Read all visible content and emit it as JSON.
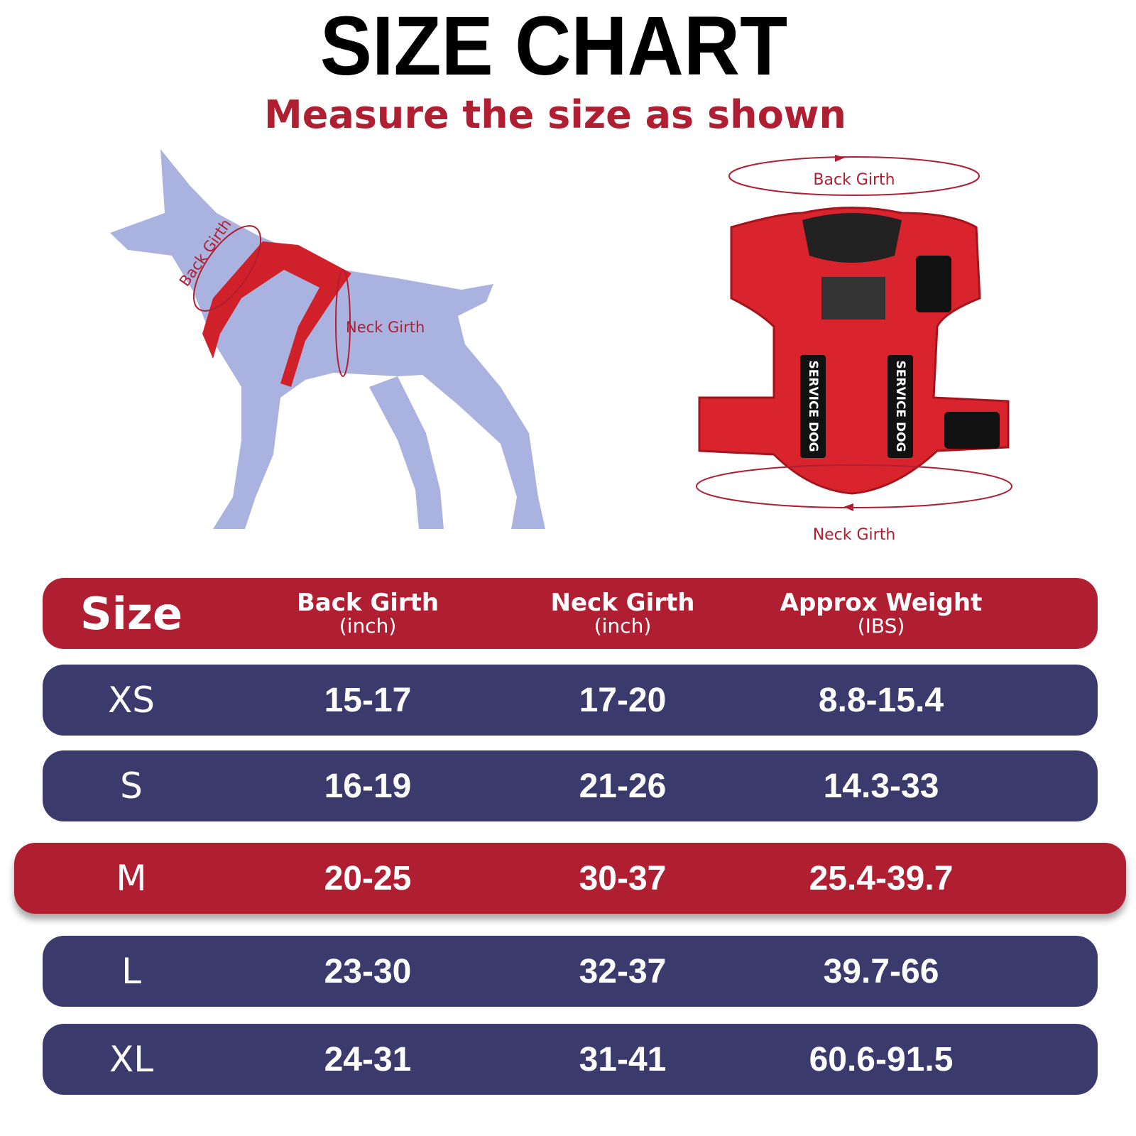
{
  "header": {
    "title": "SIZE CHART",
    "subtitle": "Measure the size as shown"
  },
  "diagram": {
    "dog_labels": {
      "back": "Back Girth",
      "neck": "Neck Girth"
    },
    "harness_labels": {
      "back": "Back Girth",
      "neck": "Neck Girth"
    },
    "patches": [
      "SERVICE DOG",
      "SERVICE DOG"
    ]
  },
  "table": {
    "columns": [
      {
        "name": "Size"
      },
      {
        "name": "Back Girth",
        "unit": "(inch)"
      },
      {
        "name": "Neck Girth",
        "unit": "(inch)"
      },
      {
        "name": "Approx Weight",
        "unit": "(IBS)"
      }
    ],
    "rows": [
      [
        "XS",
        "15-17",
        "17-20",
        "8.8-15.4"
      ],
      [
        "S",
        "16-19",
        "21-26",
        "14.3-33"
      ],
      [
        "M",
        "20-25",
        "30-37",
        "25.4-39.7"
      ],
      [
        "L",
        "23-30",
        "32-37",
        "39.7-66"
      ],
      [
        "XL",
        "24-31",
        "31-41",
        "60.6-91.5"
      ]
    ]
  }
}
